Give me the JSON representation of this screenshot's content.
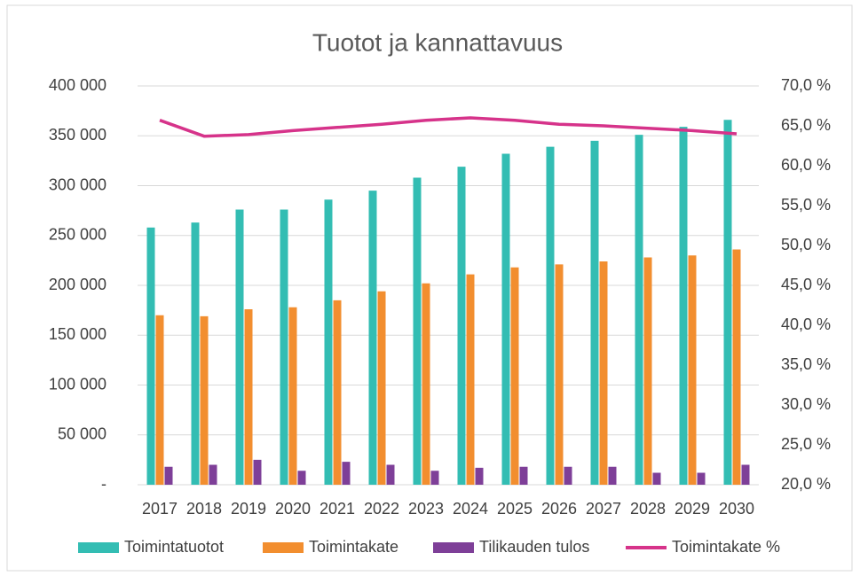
{
  "chart_data": {
    "type": "bar",
    "title": "Tuotot ja kannattavuus",
    "categories": [
      "2017",
      "2018",
      "2019",
      "2020",
      "2021",
      "2022",
      "2023",
      "2024",
      "2025",
      "2026",
      "2027",
      "2028",
      "2029",
      "2030"
    ],
    "series": [
      {
        "name": "Toimintatuotot",
        "color": "#33bdb3",
        "type": "bar",
        "values": [
          258000,
          263000,
          276000,
          276000,
          286000,
          295000,
          308000,
          319000,
          332000,
          339000,
          345000,
          351000,
          359000,
          366000
        ]
      },
      {
        "name": "Toimintakate",
        "color": "#f28e2f",
        "type": "bar",
        "values": [
          170000,
          169000,
          176000,
          178000,
          185000,
          194000,
          202000,
          211000,
          218000,
          221000,
          224000,
          228000,
          230000,
          236000
        ]
      },
      {
        "name": "Tilikauden tulos",
        "color": "#7e3f98",
        "type": "bar",
        "values": [
          18000,
          20000,
          25000,
          14000,
          23000,
          20000,
          14000,
          17000,
          18000,
          18000,
          18000,
          12000,
          12000,
          20000
        ]
      },
      {
        "name": "Toimintakate %",
        "color": "#d6338a",
        "type": "line",
        "axis": "y2",
        "values": [
          65.7,
          63.7,
          63.9,
          64.4,
          64.8,
          65.2,
          65.7,
          66.0,
          65.7,
          65.2,
          65.0,
          64.7,
          64.4,
          64.0
        ]
      }
    ],
    "ylim": [
      0,
      400000
    ],
    "yticks": [
      {
        "value": 0,
        "label": "-"
      },
      {
        "value": 50000,
        "label": "50 000"
      },
      {
        "value": 100000,
        "label": "100 000"
      },
      {
        "value": 150000,
        "label": "150 000"
      },
      {
        "value": 200000,
        "label": "200 000"
      },
      {
        "value": 250000,
        "label": "250 000"
      },
      {
        "value": 300000,
        "label": "300 000"
      },
      {
        "value": 350000,
        "label": "350 000"
      },
      {
        "value": 400000,
        "label": "400 000"
      }
    ],
    "y2lim": [
      20,
      70
    ],
    "y2ticks": [
      {
        "value": 20,
        "label": "20,0 %"
      },
      {
        "value": 25,
        "label": "25,0 %"
      },
      {
        "value": 30,
        "label": "30,0 %"
      },
      {
        "value": 35,
        "label": "35,0 %"
      },
      {
        "value": 40,
        "label": "40,0 %"
      },
      {
        "value": 45,
        "label": "45,0 %"
      },
      {
        "value": 50,
        "label": "50,0 %"
      },
      {
        "value": 55,
        "label": "55,0 %"
      },
      {
        "value": 60,
        "label": "60,0 %"
      },
      {
        "value": 65,
        "label": "65,0 %"
      },
      {
        "value": 70,
        "label": "70,0 %"
      }
    ],
    "grid": true,
    "legend": "bottom"
  }
}
